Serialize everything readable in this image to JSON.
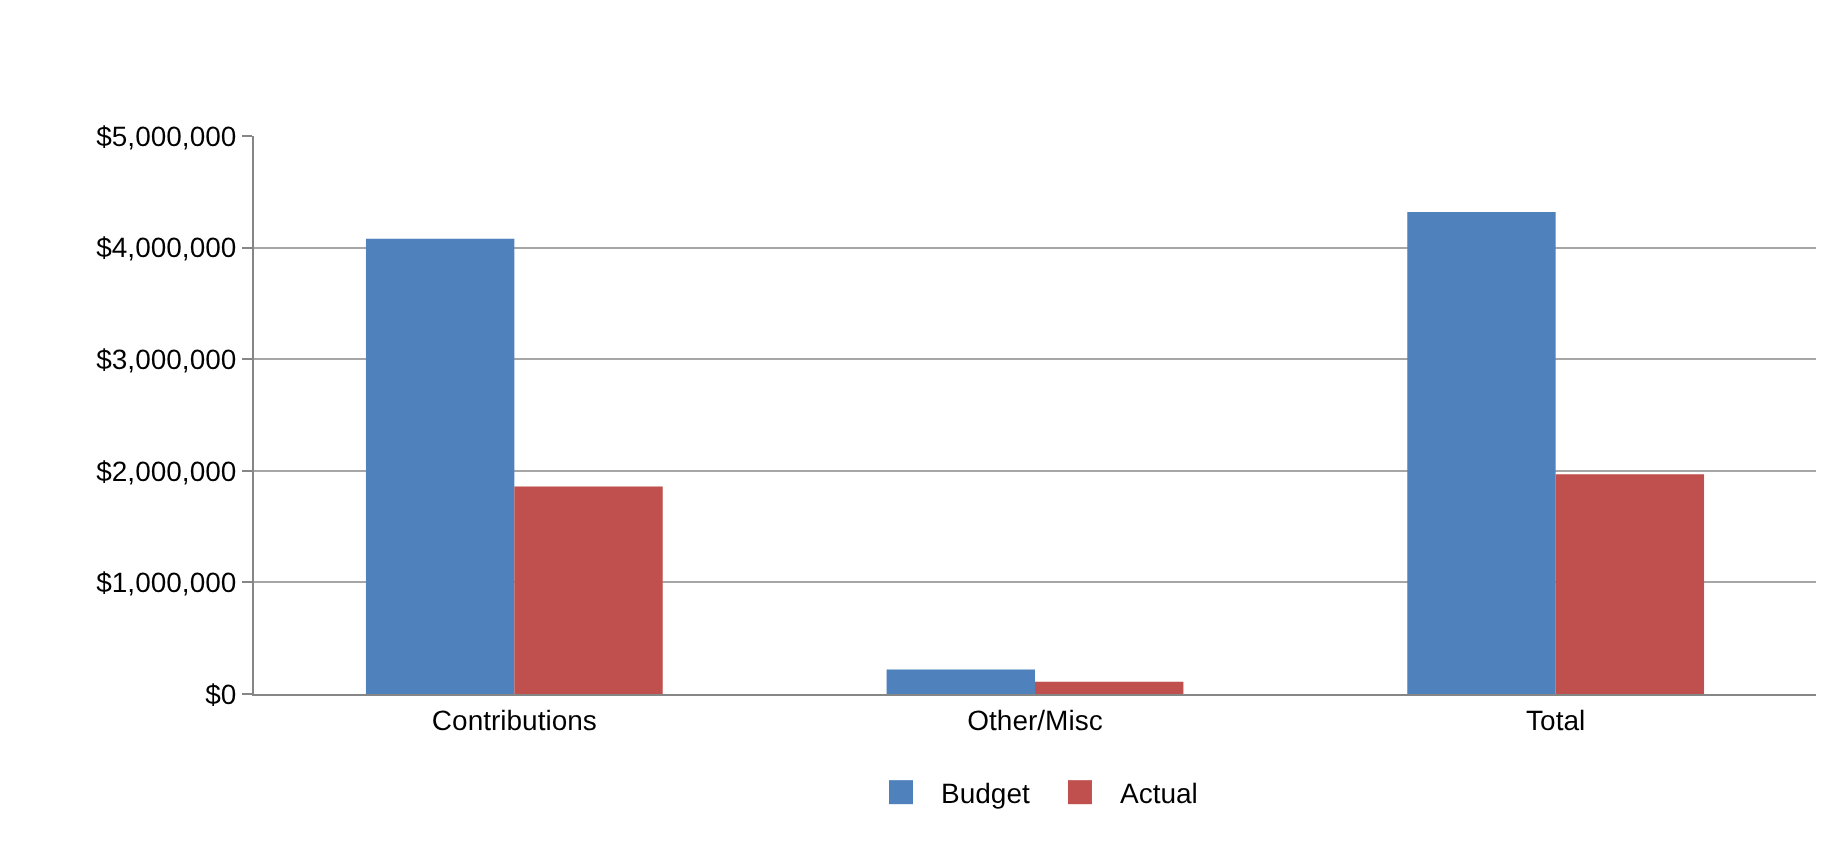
{
  "chart_data": {
    "type": "bar",
    "categories": [
      "Contributions",
      "Other/Misc",
      "Total"
    ],
    "series": [
      {
        "name": "Budget",
        "color": "#4f81bd",
        "values": [
          4080000,
          220000,
          4320000
        ]
      },
      {
        "name": "Actual",
        "color": "#c0504d",
        "values": [
          1860000,
          110000,
          1970000
        ]
      }
    ],
    "ylim": [
      0,
      5000000
    ],
    "yticks": [
      {
        "value": 0,
        "label": "$0"
      },
      {
        "value": 1000000,
        "label": "$1,000,000"
      },
      {
        "value": 2000000,
        "label": "$2,000,000"
      },
      {
        "value": 3000000,
        "label": "$3,000,000"
      },
      {
        "value": 4000000,
        "label": "$4,000,000"
      },
      {
        "value": 5000000,
        "label": "$5,000,000"
      }
    ],
    "grid": "y",
    "legend": "bottom"
  }
}
